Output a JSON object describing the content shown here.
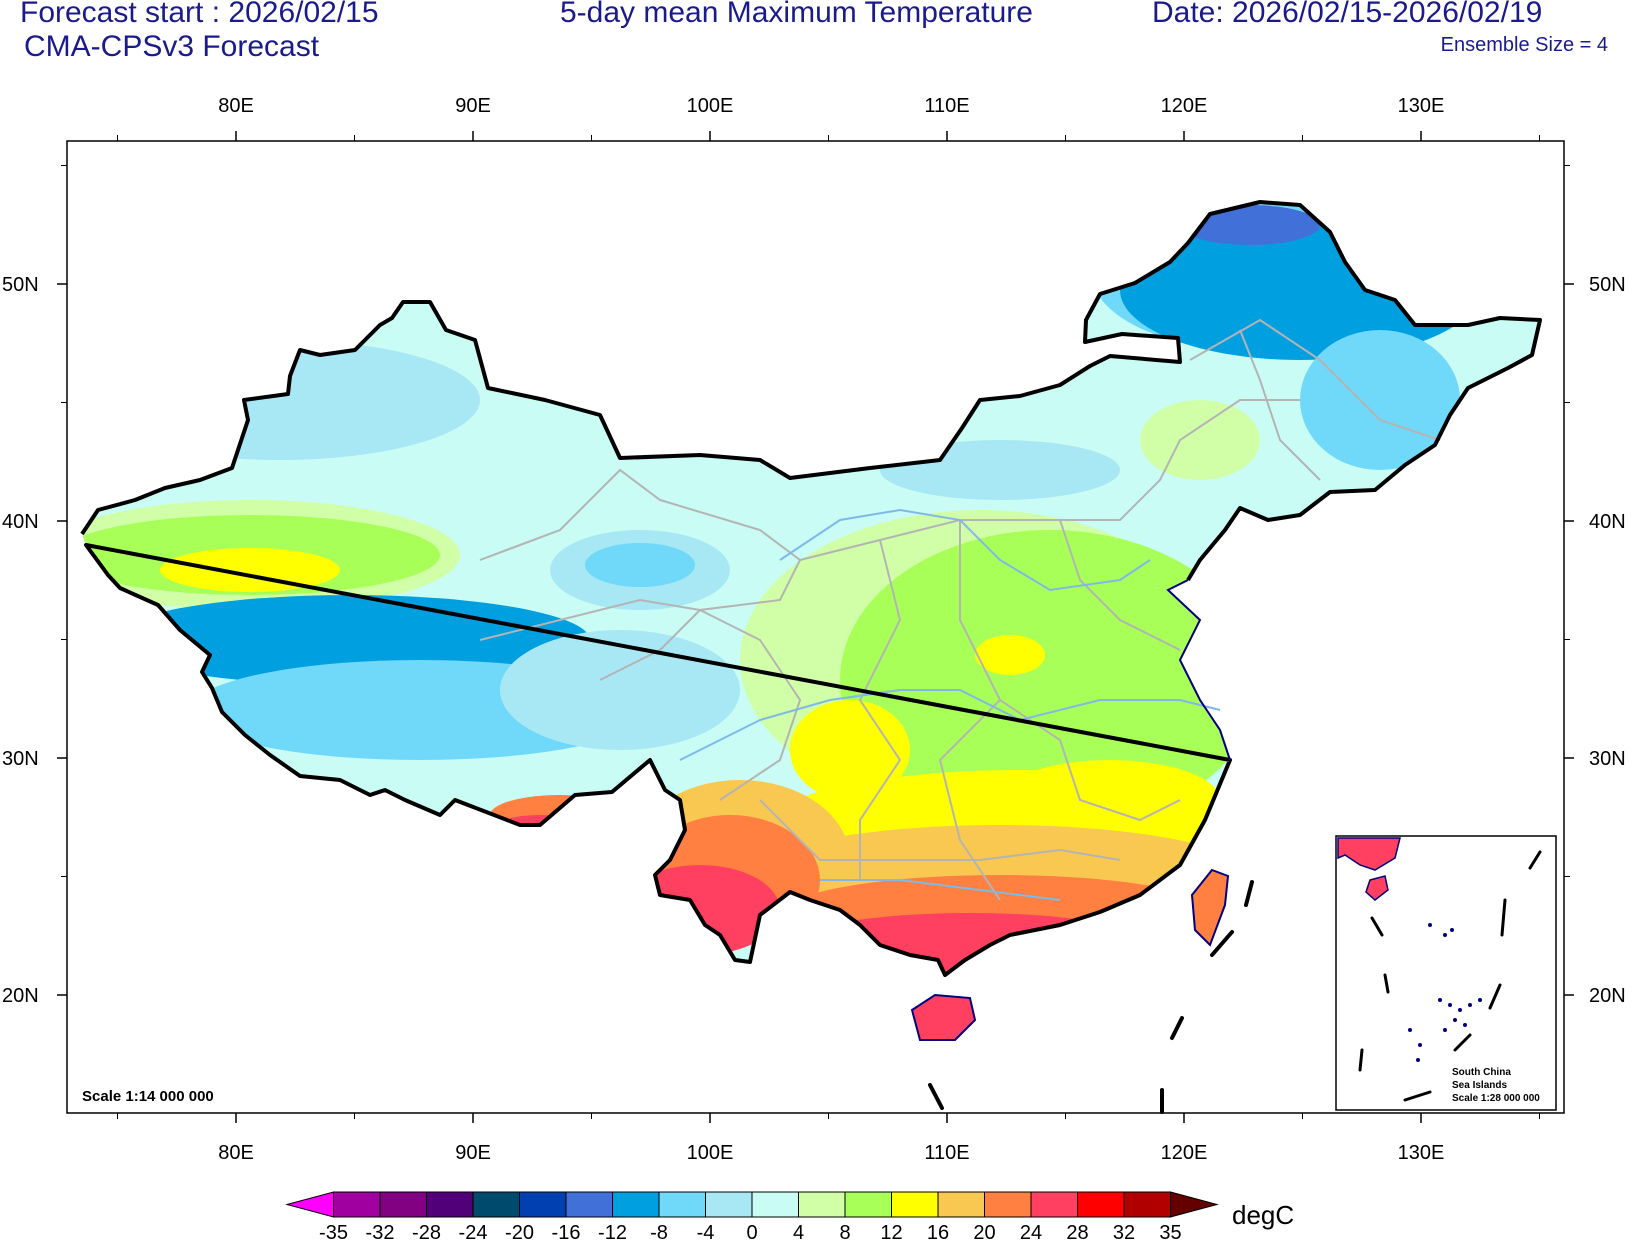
{
  "header": {
    "forecast_start": "Forecast start : 2026/02/15",
    "model": "CMA-CPSv3 Forecast",
    "title": "5-day mean Maximum Temperature",
    "date_range": "Date: 2026/02/15-2026/02/19",
    "ensemble": "Ensemble Size = 4"
  },
  "map": {
    "lon_ticks": [
      "80E",
      "90E",
      "100E",
      "110E",
      "120E",
      "130E"
    ],
    "lat_ticks": [
      "50N",
      "40N",
      "30N",
      "20N"
    ],
    "scale_text": "Scale 1:14 000 000",
    "inset": {
      "title_lines": [
        "South China",
        "Sea Islands",
        "Scale 1:28 000 000"
      ]
    }
  },
  "colorbar": {
    "unit": "degC",
    "levels": [
      "-35",
      "-32",
      "-28",
      "-24",
      "-20",
      "-16",
      "-12",
      "-8",
      "-4",
      "0",
      "4",
      "8",
      "12",
      "16",
      "20",
      "24",
      "28",
      "32",
      "35"
    ],
    "colors": [
      "#ff00ff",
      "#a000a0",
      "#820082",
      "#52007a",
      "#004a6e",
      "#0040b0",
      "#4070d8",
      "#00a0e0",
      "#70d8f8",
      "#a8e8f4",
      "#c8fcf4",
      "#d0ffa8",
      "#a8ff58",
      "#ffff00",
      "#f8c850",
      "#ff8040",
      "#ff4060",
      "#ff0000",
      "#b00000",
      "#640000"
    ]
  }
}
